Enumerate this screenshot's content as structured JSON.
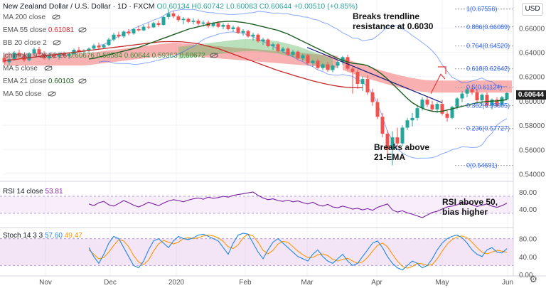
{
  "header": {
    "symbol": "New Zealand Dollar / U.S. Dollar · 1D · FXCM",
    "o": "O0.60134",
    "h": "H0.60742",
    "l": "L0.60083",
    "c": "C0.60644",
    "change": "+0.00510 (+0.85%)"
  },
  "currency_button": "USD",
  "legend": [
    {
      "label": "MA 200 close",
      "value": "",
      "color": "#787b86"
    },
    {
      "label": "EMA 55 close",
      "value": "0.61081",
      "color": "#d32f2f"
    },
    {
      "label": "BB 20 close 2",
      "value": "",
      "color": "#787b86"
    },
    {
      "label": "Ichimoku 9 26 52 26",
      "value": "0.60676 0.58584 0.60644 0.59363 0.60672",
      "color": "#388e3c"
    },
    {
      "label": "MA 5 close",
      "value": "",
      "color": "#787b86"
    },
    {
      "label": "EMA 21 close",
      "value": "0.60103",
      "color": "#1b5e20"
    },
    {
      "label": "MA 50 close",
      "value": "",
      "color": "#787b86"
    }
  ],
  "annotations": {
    "trendline": "Breaks trendline resistance at 0.6030",
    "ema": "Breaks above 21-EMA",
    "rsi": "RSI above 50, bias higher"
  },
  "rsi_label": {
    "name": "RSI 14 close",
    "value": "53.81"
  },
  "stoch_label": {
    "name": "Stoch 14 3 3",
    "k": "57.60",
    "d": "49.47"
  },
  "last_price": "0.60644",
  "chart_data": {
    "type": "candlestick",
    "x_ticks": [
      "Nov",
      "Dec",
      "2020",
      "Feb",
      "Mar",
      "Apr",
      "May",
      "Jun"
    ],
    "price_axis": {
      "ticks": [
        0.54,
        0.56,
        0.58,
        0.6,
        0.62,
        0.64,
        0.66
      ],
      "range": [
        0.535,
        0.683
      ]
    },
    "fib_levels": [
      {
        "ratio": "1",
        "price": 0.67556
      },
      {
        "ratio": "0.886",
        "price": 0.66089
      },
      {
        "ratio": "0.764",
        "price": 0.6452
      },
      {
        "ratio": "0.618",
        "price": 0.62642
      },
      {
        "ratio": "0.5",
        "price": 0.61124
      },
      {
        "ratio": "0.382",
        "price": 0.59605
      },
      {
        "ratio": "0.236",
        "price": 0.57727
      },
      {
        "ratio": "0",
        "price": 0.54691
      }
    ],
    "candles": [
      {
        "o": 0.6355,
        "h": 0.6372,
        "l": 0.63,
        "c": 0.6318
      },
      {
        "o": 0.6318,
        "h": 0.636,
        "l": 0.629,
        "c": 0.6345
      },
      {
        "o": 0.6345,
        "h": 0.641,
        "l": 0.633,
        "c": 0.6395
      },
      {
        "o": 0.6395,
        "h": 0.642,
        "l": 0.636,
        "c": 0.6372
      },
      {
        "o": 0.6372,
        "h": 0.6385,
        "l": 0.632,
        "c": 0.6335
      },
      {
        "o": 0.6335,
        "h": 0.64,
        "l": 0.6325,
        "c": 0.639
      },
      {
        "o": 0.639,
        "h": 0.644,
        "l": 0.6375,
        "c": 0.6425
      },
      {
        "o": 0.6425,
        "h": 0.6445,
        "l": 0.637,
        "c": 0.6385
      },
      {
        "o": 0.6385,
        "h": 0.641,
        "l": 0.634,
        "c": 0.635
      },
      {
        "o": 0.635,
        "h": 0.6395,
        "l": 0.6335,
        "c": 0.638
      },
      {
        "o": 0.638,
        "h": 0.6395,
        "l": 0.635,
        "c": 0.6365
      },
      {
        "o": 0.6365,
        "h": 0.64,
        "l": 0.634,
        "c": 0.639
      },
      {
        "o": 0.639,
        "h": 0.6405,
        "l": 0.6355,
        "c": 0.637
      },
      {
        "o": 0.637,
        "h": 0.6392,
        "l": 0.6345,
        "c": 0.6385
      },
      {
        "o": 0.6385,
        "h": 0.643,
        "l": 0.6375,
        "c": 0.642
      },
      {
        "o": 0.642,
        "h": 0.6445,
        "l": 0.6395,
        "c": 0.6405
      },
      {
        "o": 0.6405,
        "h": 0.6425,
        "l": 0.6385,
        "c": 0.6415
      },
      {
        "o": 0.6415,
        "h": 0.644,
        "l": 0.64,
        "c": 0.643
      },
      {
        "o": 0.643,
        "h": 0.647,
        "l": 0.642,
        "c": 0.6455
      },
      {
        "o": 0.6455,
        "h": 0.648,
        "l": 0.643,
        "c": 0.644
      },
      {
        "o": 0.644,
        "h": 0.647,
        "l": 0.6425,
        "c": 0.646
      },
      {
        "o": 0.646,
        "h": 0.652,
        "l": 0.645,
        "c": 0.6505
      },
      {
        "o": 0.6505,
        "h": 0.656,
        "l": 0.649,
        "c": 0.6545
      },
      {
        "o": 0.6545,
        "h": 0.657,
        "l": 0.6515,
        "c": 0.653
      },
      {
        "o": 0.653,
        "h": 0.658,
        "l": 0.652,
        "c": 0.657
      },
      {
        "o": 0.657,
        "h": 0.659,
        "l": 0.654,
        "c": 0.6555
      },
      {
        "o": 0.6555,
        "h": 0.66,
        "l": 0.6545,
        "c": 0.659
      },
      {
        "o": 0.659,
        "h": 0.662,
        "l": 0.657,
        "c": 0.658
      },
      {
        "o": 0.658,
        "h": 0.6625,
        "l": 0.6575,
        "c": 0.661
      },
      {
        "o": 0.661,
        "h": 0.664,
        "l": 0.659,
        "c": 0.6605
      },
      {
        "o": 0.6605,
        "h": 0.665,
        "l": 0.66,
        "c": 0.664
      },
      {
        "o": 0.664,
        "h": 0.666,
        "l": 0.661,
        "c": 0.6625
      },
      {
        "o": 0.6625,
        "h": 0.67,
        "l": 0.662,
        "c": 0.669
      },
      {
        "o": 0.669,
        "h": 0.6756,
        "l": 0.667,
        "c": 0.672
      },
      {
        "o": 0.672,
        "h": 0.674,
        "l": 0.668,
        "c": 0.6695
      },
      {
        "o": 0.6695,
        "h": 0.671,
        "l": 0.665,
        "c": 0.6665
      },
      {
        "o": 0.6665,
        "h": 0.669,
        "l": 0.663,
        "c": 0.6675
      },
      {
        "o": 0.6675,
        "h": 0.6685,
        "l": 0.664,
        "c": 0.665
      },
      {
        "o": 0.665,
        "h": 0.668,
        "l": 0.663,
        "c": 0.666
      },
      {
        "o": 0.666,
        "h": 0.6675,
        "l": 0.662,
        "c": 0.6635
      },
      {
        "o": 0.6635,
        "h": 0.666,
        "l": 0.661,
        "c": 0.6645
      },
      {
        "o": 0.6645,
        "h": 0.666,
        "l": 0.66,
        "c": 0.6615
      },
      {
        "o": 0.6615,
        "h": 0.665,
        "l": 0.6605,
        "c": 0.664
      },
      {
        "o": 0.664,
        "h": 0.6655,
        "l": 0.66,
        "c": 0.661
      },
      {
        "o": 0.661,
        "h": 0.664,
        "l": 0.659,
        "c": 0.6625
      },
      {
        "o": 0.6625,
        "h": 0.664,
        "l": 0.658,
        "c": 0.659
      },
      {
        "o": 0.659,
        "h": 0.662,
        "l": 0.657,
        "c": 0.6605
      },
      {
        "o": 0.6605,
        "h": 0.6615,
        "l": 0.655,
        "c": 0.656
      },
      {
        "o": 0.656,
        "h": 0.659,
        "l": 0.6535,
        "c": 0.6575
      },
      {
        "o": 0.6575,
        "h": 0.6585,
        "l": 0.652,
        "c": 0.653
      },
      {
        "o": 0.653,
        "h": 0.656,
        "l": 0.6495,
        "c": 0.6545
      },
      {
        "o": 0.6545,
        "h": 0.6555,
        "l": 0.648,
        "c": 0.649
      },
      {
        "o": 0.649,
        "h": 0.652,
        "l": 0.646,
        "c": 0.6505
      },
      {
        "o": 0.6505,
        "h": 0.6515,
        "l": 0.644,
        "c": 0.645
      },
      {
        "o": 0.645,
        "h": 0.648,
        "l": 0.642,
        "c": 0.6465
      },
      {
        "o": 0.6465,
        "h": 0.6475,
        "l": 0.64,
        "c": 0.641
      },
      {
        "o": 0.641,
        "h": 0.6445,
        "l": 0.6395,
        "c": 0.643
      },
      {
        "o": 0.643,
        "h": 0.644,
        "l": 0.637,
        "c": 0.638
      },
      {
        "o": 0.638,
        "h": 0.642,
        "l": 0.636,
        "c": 0.6405
      },
      {
        "o": 0.6405,
        "h": 0.6415,
        "l": 0.634,
        "c": 0.635
      },
      {
        "o": 0.635,
        "h": 0.639,
        "l": 0.633,
        "c": 0.6375
      },
      {
        "o": 0.6375,
        "h": 0.6385,
        "l": 0.63,
        "c": 0.631
      },
      {
        "o": 0.631,
        "h": 0.634,
        "l": 0.628,
        "c": 0.633
      },
      {
        "o": 0.633,
        "h": 0.6345,
        "l": 0.626,
        "c": 0.627
      },
      {
        "o": 0.627,
        "h": 0.631,
        "l": 0.625,
        "c": 0.63
      },
      {
        "o": 0.63,
        "h": 0.632,
        "l": 0.624,
        "c": 0.6255
      },
      {
        "o": 0.6255,
        "h": 0.63,
        "l": 0.6235,
        "c": 0.629
      },
      {
        "o": 0.629,
        "h": 0.633,
        "l": 0.627,
        "c": 0.632
      },
      {
        "o": 0.632,
        "h": 0.637,
        "l": 0.63,
        "c": 0.636
      },
      {
        "o": 0.636,
        "h": 0.638,
        "l": 0.625,
        "c": 0.6265
      },
      {
        "o": 0.6265,
        "h": 0.628,
        "l": 0.606,
        "c": 0.624
      },
      {
        "o": 0.624,
        "h": 0.626,
        "l": 0.61,
        "c": 0.614
      },
      {
        "o": 0.614,
        "h": 0.62,
        "l": 0.608,
        "c": 0.618
      },
      {
        "o": 0.618,
        "h": 0.621,
        "l": 0.605,
        "c": 0.607
      },
      {
        "o": 0.607,
        "h": 0.61,
        "l": 0.596,
        "c": 0.599
      },
      {
        "o": 0.599,
        "h": 0.602,
        "l": 0.585,
        "c": 0.587
      },
      {
        "o": 0.587,
        "h": 0.59,
        "l": 0.57,
        "c": 0.573
      },
      {
        "o": 0.573,
        "h": 0.576,
        "l": 0.556,
        "c": 0.56
      },
      {
        "o": 0.56,
        "h": 0.575,
        "l": 0.5469,
        "c": 0.57
      },
      {
        "o": 0.57,
        "h": 0.578,
        "l": 0.562,
        "c": 0.565
      },
      {
        "o": 0.565,
        "h": 0.58,
        "l": 0.563,
        "c": 0.578
      },
      {
        "o": 0.578,
        "h": 0.586,
        "l": 0.576,
        "c": 0.584
      },
      {
        "o": 0.584,
        "h": 0.59,
        "l": 0.579,
        "c": 0.586
      },
      {
        "o": 0.586,
        "h": 0.596,
        "l": 0.584,
        "c": 0.594
      },
      {
        "o": 0.594,
        "h": 0.603,
        "l": 0.592,
        "c": 0.601
      },
      {
        "o": 0.601,
        "h": 0.604,
        "l": 0.595,
        "c": 0.597
      },
      {
        "o": 0.597,
        "h": 0.6,
        "l": 0.591,
        "c": 0.593
      },
      {
        "o": 0.593,
        "h": 0.599,
        "l": 0.59,
        "c": 0.5975
      },
      {
        "o": 0.5975,
        "h": 0.601,
        "l": 0.588,
        "c": 0.5895
      },
      {
        "o": 0.5895,
        "h": 0.592,
        "l": 0.583,
        "c": 0.586
      },
      {
        "o": 0.586,
        "h": 0.596,
        "l": 0.585,
        "c": 0.595
      },
      {
        "o": 0.595,
        "h": 0.603,
        "l": 0.593,
        "c": 0.602
      },
      {
        "o": 0.602,
        "h": 0.608,
        "l": 0.599,
        "c": 0.606
      },
      {
        "o": 0.606,
        "h": 0.611,
        "l": 0.603,
        "c": 0.6095
      },
      {
        "o": 0.6095,
        "h": 0.6125,
        "l": 0.605,
        "c": 0.607
      },
      {
        "o": 0.607,
        "h": 0.61,
        "l": 0.599,
        "c": 0.6005
      },
      {
        "o": 0.6005,
        "h": 0.606,
        "l": 0.596,
        "c": 0.605
      },
      {
        "o": 0.605,
        "h": 0.607,
        "l": 0.594,
        "c": 0.596
      },
      {
        "o": 0.596,
        "h": 0.602,
        "l": 0.593,
        "c": 0.601
      },
      {
        "o": 0.601,
        "h": 0.603,
        "l": 0.595,
        "c": 0.5965
      },
      {
        "o": 0.5965,
        "h": 0.604,
        "l": 0.5955,
        "c": 0.603
      },
      {
        "o": 0.6013,
        "h": 0.6074,
        "l": 0.6008,
        "c": 0.6064
      }
    ],
    "ema21": [
      0.6345,
      0.635,
      0.636,
      0.637,
      0.638,
      0.639,
      0.64,
      0.641,
      0.642,
      0.643,
      0.644,
      0.6455,
      0.647,
      0.6485,
      0.65,
      0.6515,
      0.653,
      0.6545,
      0.656,
      0.6575,
      0.659,
      0.66,
      0.661,
      0.662,
      0.663,
      0.664,
      0.6648,
      0.6652,
      0.6655,
      0.6655,
      0.665,
      0.6645,
      0.6638,
      0.663,
      0.662,
      0.661,
      0.66,
      0.659,
      0.658,
      0.6565,
      0.655,
      0.653,
      0.651,
      0.649,
      0.647,
      0.645,
      0.643,
      0.641,
      0.639,
      0.637,
      0.635,
      0.6335,
      0.632,
      0.631,
      0.6305,
      0.63,
      0.629,
      0.627,
      0.6245,
      0.6215,
      0.618,
      0.614,
      0.61,
      0.606,
      0.602,
      0.5985,
      0.596,
      0.594,
      0.5925,
      0.5915,
      0.5912,
      0.5915,
      0.5925,
      0.5935,
      0.5945,
      0.5955,
      0.5965,
      0.5975,
      0.5985,
      0.599,
      0.5995,
      0.5998,
      0.6,
      0.6005,
      0.601
    ],
    "ema55": [
      0.633,
      0.6335,
      0.634,
      0.6345,
      0.635,
      0.6355,
      0.636,
      0.6365,
      0.637,
      0.6375,
      0.638,
      0.6385,
      0.639,
      0.6395,
      0.64,
      0.6405,
      0.641,
      0.6415,
      0.642,
      0.6425,
      0.643,
      0.6435,
      0.644,
      0.6445,
      0.645,
      0.6455,
      0.646,
      0.6465,
      0.647,
      0.6475,
      0.648,
      0.6485,
      0.6487,
      0.6488,
      0.6488,
      0.6487,
      0.6485,
      0.648,
      0.6475,
      0.647,
      0.646,
      0.645,
      0.644,
      0.643,
      0.6415,
      0.64,
      0.6385,
      0.637,
      0.6355,
      0.634,
      0.6325,
      0.631,
      0.6295,
      0.628,
      0.6265,
      0.625,
      0.6238,
      0.6225,
      0.6212,
      0.62,
      0.6188,
      0.6176,
      0.6165,
      0.6155,
      0.6145,
      0.6136,
      0.6128,
      0.6121,
      0.6115,
      0.6111,
      0.6109,
      0.6108,
      0.6108
    ],
    "rsi": {
      "range": [
        0,
        100
      ],
      "ticks": [
        40,
        80
      ],
      "band": [
        30,
        70
      ],
      "values": [
        52,
        48,
        55,
        58,
        50,
        47,
        53,
        60,
        55,
        49,
        45,
        50,
        56,
        52,
        48,
        54,
        59,
        62,
        60,
        57,
        61,
        64,
        66,
        63,
        68,
        65,
        67,
        70,
        68,
        72,
        74,
        76,
        78,
        80,
        72,
        66,
        62,
        64,
        60,
        58,
        61,
        57,
        59,
        55,
        52,
        56,
        50,
        47,
        51,
        45,
        43,
        47,
        44,
        40,
        42,
        38,
        41,
        37,
        44,
        48,
        52,
        38,
        33,
        36,
        31,
        28,
        24,
        20,
        26,
        32,
        35,
        40,
        45,
        47,
        50,
        55,
        54,
        50,
        46,
        49,
        52,
        47,
        44,
        48,
        53.81
      ]
    },
    "stoch": {
      "range": [
        0,
        100
      ],
      "ticks": [
        0,
        40,
        80
      ],
      "band": [
        20,
        80
      ],
      "k": [
        60,
        40,
        25,
        45,
        70,
        85,
        80,
        60,
        40,
        20,
        15,
        30,
        55,
        75,
        80,
        70,
        60,
        75,
        85,
        80,
        78,
        82,
        88,
        90,
        85,
        80,
        75,
        60,
        45,
        70,
        88,
        92,
        90,
        70,
        50,
        35,
        55,
        72,
        80,
        70,
        60,
        50,
        40,
        35,
        30,
        45,
        55,
        40,
        30,
        25,
        35,
        45,
        30,
        20,
        25,
        40,
        55,
        70,
        75,
        60,
        40,
        25,
        15,
        10,
        20,
        30,
        25,
        15,
        20,
        35,
        55,
        70,
        80,
        85,
        88,
        82,
        70,
        55,
        45,
        40,
        55,
        60,
        50,
        48,
        57.6
      ],
      "d": [
        55,
        45,
        35,
        38,
        50,
        65,
        78,
        75,
        62,
        42,
        28,
        22,
        32,
        52,
        68,
        76,
        72,
        68,
        72,
        80,
        82,
        80,
        82,
        86,
        88,
        86,
        82,
        74,
        62,
        58,
        66,
        82,
        90,
        86,
        72,
        54,
        46,
        54,
        68,
        74,
        72,
        62,
        52,
        44,
        38,
        38,
        44,
        46,
        42,
        34,
        30,
        34,
        36,
        30,
        25,
        28,
        38,
        52,
        65,
        70,
        62,
        45,
        30,
        18,
        14,
        18,
        25,
        24,
        20,
        22,
        35,
        52,
        68,
        78,
        84,
        86,
        82,
        72,
        60,
        50,
        46,
        50,
        54,
        52,
        49.47
      ]
    }
  }
}
